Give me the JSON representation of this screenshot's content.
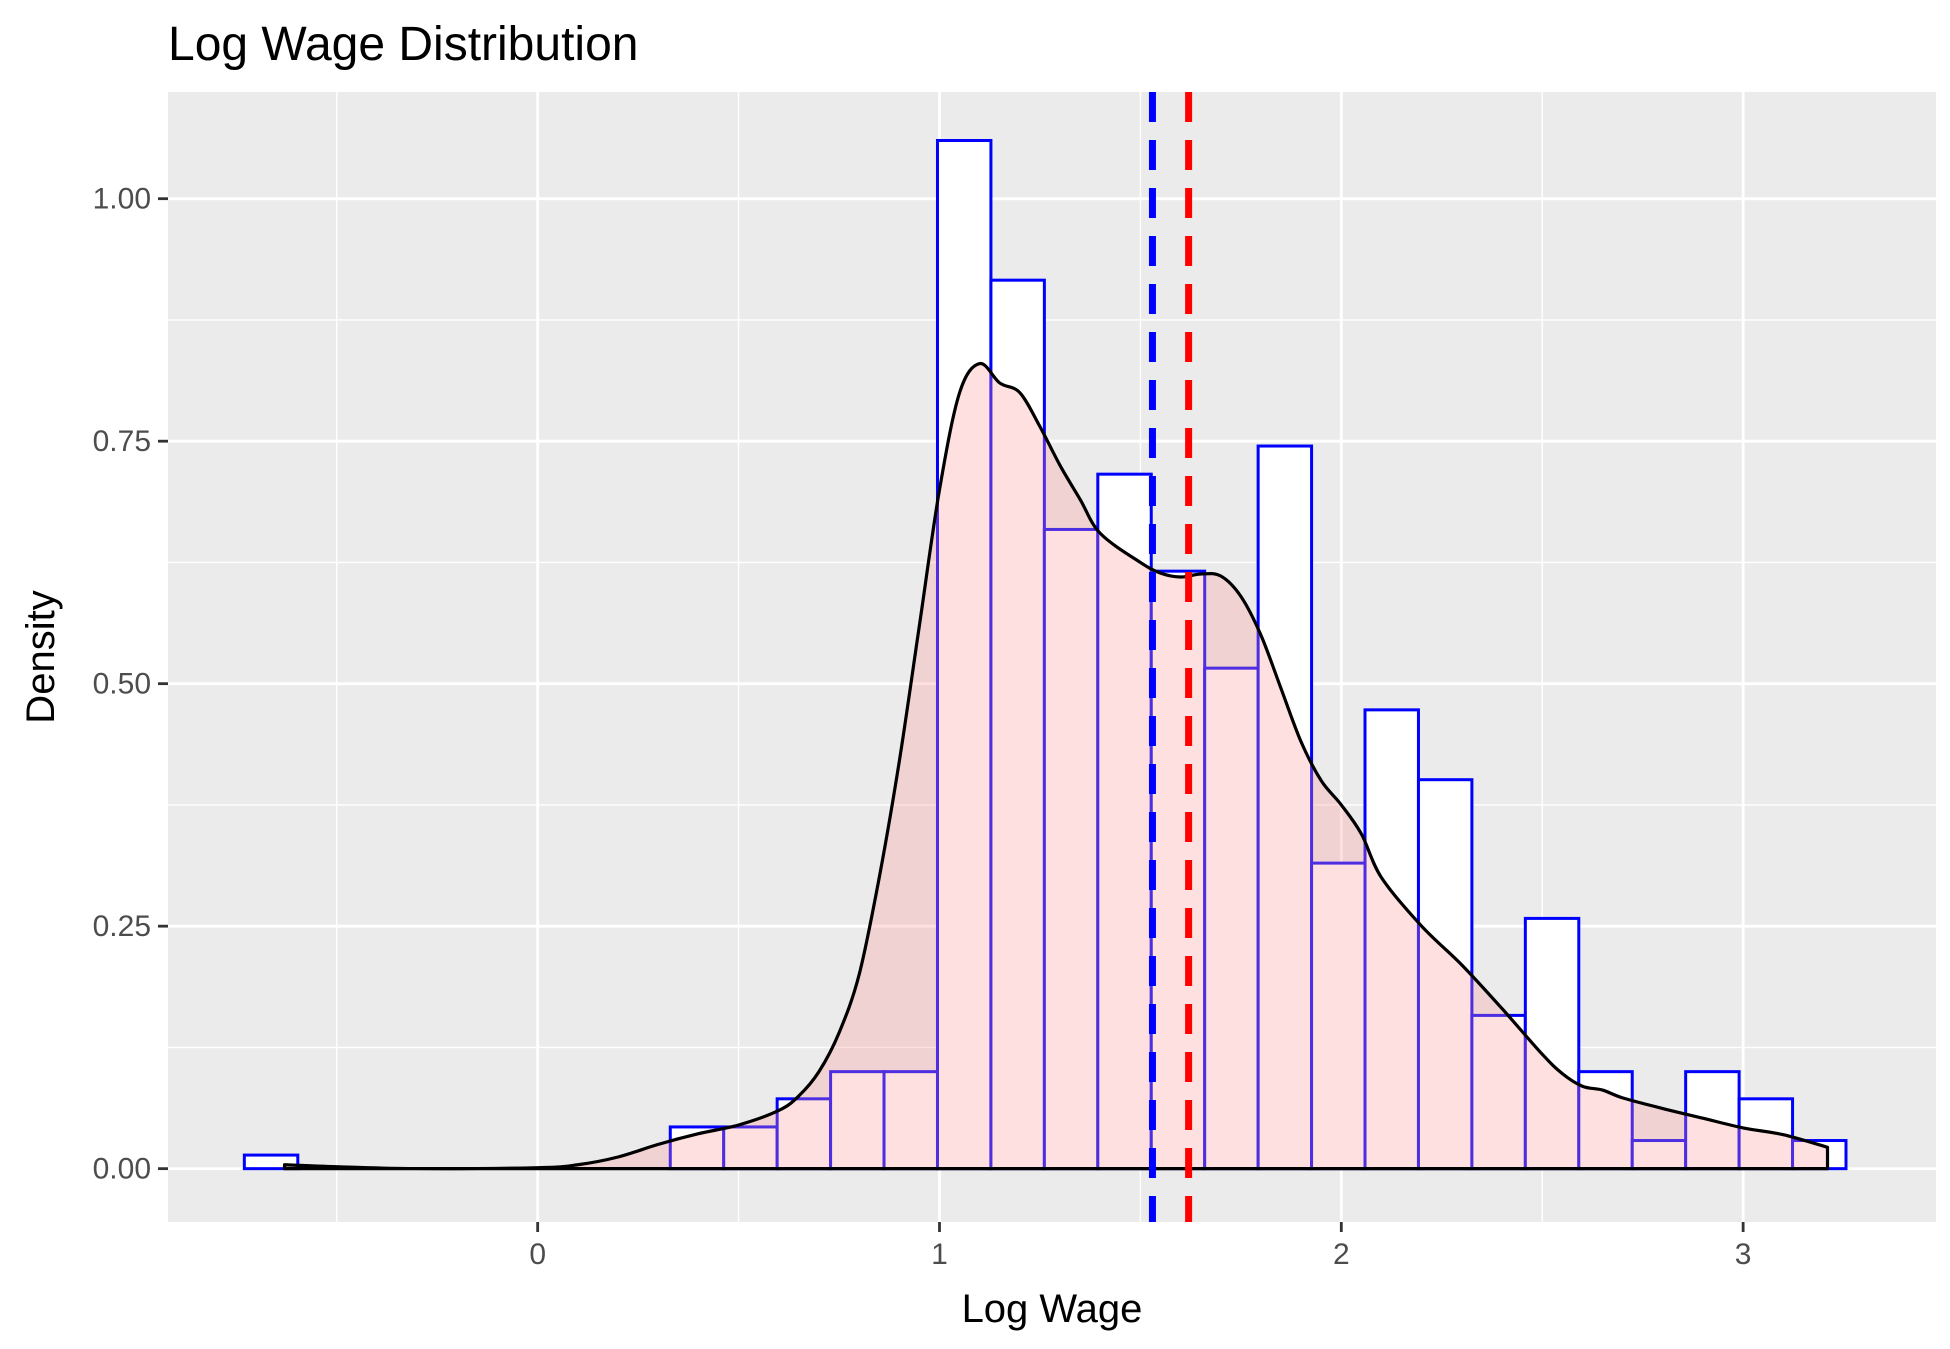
{
  "chart_data": {
    "type": "histogram",
    "title": "Log Wage Distribution",
    "xlabel": "Log Wage",
    "ylabel": "Density",
    "xlim": [
      -0.92,
      3.48
    ],
    "ylim": [
      -0.055,
      1.11
    ],
    "x_ticks": [
      {
        "value": 0,
        "label": "0"
      },
      {
        "value": 1,
        "label": "1"
      },
      {
        "value": 2,
        "label": "2"
      },
      {
        "value": 3,
        "label": "3"
      }
    ],
    "x_minor": [
      -0.5,
      0.5,
      1.5,
      2.5
    ],
    "y_ticks": [
      {
        "value": 0,
        "label": "0.00"
      },
      {
        "value": 0.25,
        "label": "0.25"
      },
      {
        "value": 0.5,
        "label": "0.50"
      },
      {
        "value": 0.75,
        "label": "0.75"
      },
      {
        "value": 1,
        "label": "1.00"
      }
    ],
    "y_minor": [
      0.125,
      0.375,
      0.625,
      0.875
    ],
    "grid": true,
    "background": "#ebebeb",
    "series": [
      {
        "kind": "histogram",
        "fill": "#ffffff",
        "stroke": "#0000ff",
        "bins": [
          {
            "x0": -0.73,
            "x1": -0.597,
            "y": 0.014
          },
          {
            "x0": 0.33,
            "x1": 0.463,
            "y": 0.043
          },
          {
            "x0": 0.463,
            "x1": 0.596,
            "y": 0.043
          },
          {
            "x0": 0.596,
            "x1": 0.729,
            "y": 0.072
          },
          {
            "x0": 0.729,
            "x1": 0.862,
            "y": 0.1
          },
          {
            "x0": 0.862,
            "x1": 0.995,
            "y": 0.1
          },
          {
            "x0": 0.995,
            "x1": 1.128,
            "y": 1.06
          },
          {
            "x0": 1.128,
            "x1": 1.261,
            "y": 0.916
          },
          {
            "x0": 1.261,
            "x1": 1.394,
            "y": 0.659
          },
          {
            "x0": 1.394,
            "x1": 1.527,
            "y": 0.716
          },
          {
            "x0": 1.527,
            "x1": 1.66,
            "y": 0.616
          },
          {
            "x0": 1.66,
            "x1": 1.793,
            "y": 0.516
          },
          {
            "x0": 1.793,
            "x1": 1.926,
            "y": 0.745
          },
          {
            "x0": 1.926,
            "x1": 2.059,
            "y": 0.315
          },
          {
            "x0": 2.059,
            "x1": 2.192,
            "y": 0.473
          },
          {
            "x0": 2.192,
            "x1": 2.325,
            "y": 0.401
          },
          {
            "x0": 2.325,
            "x1": 2.458,
            "y": 0.158
          },
          {
            "x0": 2.458,
            "x1": 2.591,
            "y": 0.258
          },
          {
            "x0": 2.591,
            "x1": 2.724,
            "y": 0.1
          },
          {
            "x0": 2.724,
            "x1": 2.857,
            "y": 0.029
          },
          {
            "x0": 2.857,
            "x1": 2.99,
            "y": 0.1
          },
          {
            "x0": 2.99,
            "x1": 3.123,
            "y": 0.072
          },
          {
            "x0": 3.123,
            "x1": 3.256,
            "y": 0.029
          }
        ]
      },
      {
        "kind": "density",
        "fill": "#ff9999",
        "fill_opacity": 0.3,
        "stroke": "#000000",
        "x": [
          -0.63,
          -0.5,
          -0.3,
          0,
          0.1,
          0.2,
          0.3,
          0.4,
          0.5,
          0.6,
          0.65,
          0.7,
          0.75,
          0.8,
          0.85,
          0.9,
          0.95,
          1.0,
          1.05,
          1.1,
          1.15,
          1.2,
          1.25,
          1.3,
          1.35,
          1.4,
          1.5,
          1.55,
          1.6,
          1.65,
          1.7,
          1.75,
          1.8,
          1.85,
          1.9,
          1.95,
          2.0,
          2.05,
          2.1,
          2.2,
          2.3,
          2.4,
          2.5,
          2.55,
          2.6,
          2.65,
          2.7,
          2.8,
          2.9,
          3.0,
          3.1,
          3.21
        ],
        "y": [
          0.004,
          0.002,
          0.0,
          0.001,
          0.004,
          0.012,
          0.025,
          0.036,
          0.045,
          0.06,
          0.075,
          0.1,
          0.14,
          0.2,
          0.3,
          0.42,
          0.56,
          0.7,
          0.8,
          0.83,
          0.81,
          0.8,
          0.765,
          0.725,
          0.69,
          0.655,
          0.625,
          0.614,
          0.61,
          0.613,
          0.611,
          0.59,
          0.55,
          0.495,
          0.44,
          0.4,
          0.375,
          0.345,
          0.3,
          0.25,
          0.21,
          0.165,
          0.118,
          0.098,
          0.085,
          0.081,
          0.073,
          0.062,
          0.052,
          0.042,
          0.035,
          0.022
        ]
      }
    ],
    "vlines": [
      {
        "x": 1.53,
        "color": "#0000ff",
        "style": "dashed"
      },
      {
        "x": 1.62,
        "color": "#ff0000",
        "style": "dashed"
      }
    ]
  }
}
